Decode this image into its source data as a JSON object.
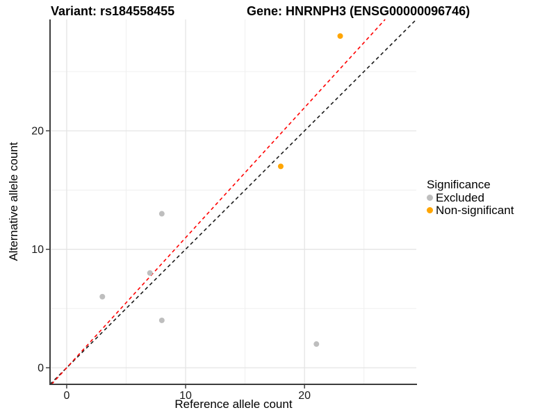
{
  "titles": {
    "variant": "Variant: rs184558455",
    "gene": "Gene: HNRNPH3 (ENSG00000096746)"
  },
  "chart_data": {
    "type": "scatter",
    "xlabel": "Reference allele count",
    "ylabel": "Alternative allele count",
    "xlim": [
      -1.4,
      29.4
    ],
    "ylim": [
      -1.4,
      29.4
    ],
    "x_major_ticks": [
      0,
      10,
      20
    ],
    "x_minor_ticks": [
      5,
      15,
      25
    ],
    "y_major_ticks": [
      0,
      10,
      20
    ],
    "y_minor_ticks": [
      5,
      15,
      25
    ],
    "grid": true,
    "background": "#ffffff",
    "major_grid_color": "#e4e4e4",
    "minor_grid_color": "#efefef",
    "axis_line_color": "#3c3c3c",
    "series": [
      {
        "name": "Excluded",
        "color": "#bebebe",
        "points": [
          [
            3,
            6
          ],
          [
            7,
            8
          ],
          [
            8,
            13
          ],
          [
            8,
            4
          ],
          [
            21,
            2
          ]
        ]
      },
      {
        "name": "Non-significant",
        "color": "#ffa500",
        "points": [
          [
            18,
            17
          ],
          [
            23,
            28
          ]
        ]
      }
    ],
    "reference_lines": [
      {
        "name": "identity-line",
        "slope": 1.0,
        "intercept": 0,
        "color": "#1a1a1a",
        "dashed": true
      },
      {
        "name": "expected-ratio-line",
        "slope": 1.098,
        "intercept": 0,
        "color": "#ff0000",
        "dashed": true
      }
    ],
    "legend": {
      "position": "right",
      "title": "Significance",
      "items": [
        {
          "label": "Excluded",
          "color": "#bebebe"
        },
        {
          "label": "Non-significant",
          "color": "#ffa500"
        }
      ]
    }
  }
}
